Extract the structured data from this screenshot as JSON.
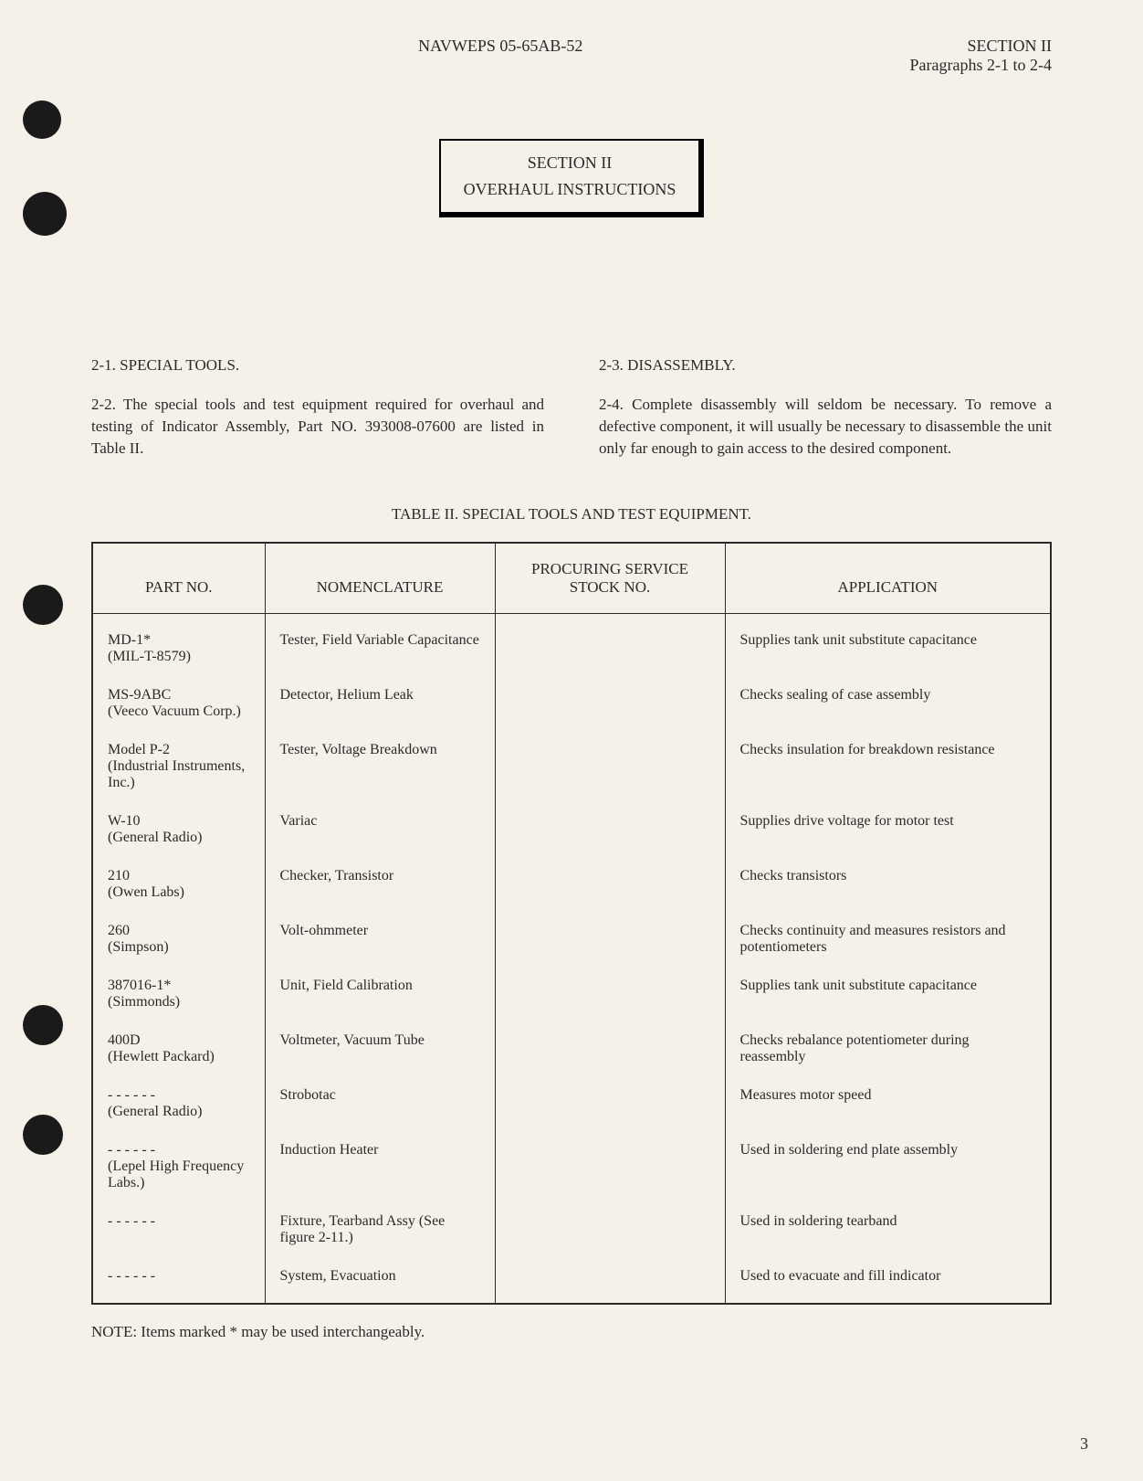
{
  "header": {
    "doc_id": "NAVWEPS 05-65AB-52",
    "section": "SECTION II",
    "paragraphs": "Paragraphs 2-1 to 2-4"
  },
  "section_box": {
    "line1": "SECTION II",
    "line2": "OVERHAUL INSTRUCTIONS"
  },
  "left_col": {
    "heading": "2-1. SPECIAL TOOLS.",
    "para": "2-2. The special tools and test equipment required for overhaul and testing of Indicator Assembly, Part NO. 393008-07600 are listed in Table II."
  },
  "right_col": {
    "heading": "2-3. DISASSEMBLY.",
    "para": "2-4. Complete disassembly will seldom be necessary. To remove a defective component, it will usually be necessary to disassemble the unit only far enough to gain access to the desired component."
  },
  "table": {
    "title": "TABLE II. SPECIAL TOOLS AND TEST EQUIPMENT.",
    "columns": [
      "PART NO.",
      "NOMENCLATURE",
      "PROCURING SERVICE STOCK NO.",
      "APPLICATION"
    ],
    "rows": [
      [
        "MD-1*\n(MIL-T-8579)",
        "Tester, Field Variable Capacitance",
        "",
        "Supplies tank unit substitute capacitance"
      ],
      [
        "MS-9ABC\n(Veeco Vacuum Corp.)",
        "Detector, Helium Leak",
        "",
        "Checks sealing of case assembly"
      ],
      [
        "Model P-2\n(Industrial Instruments, Inc.)",
        "Tester, Voltage Breakdown",
        "",
        "Checks insulation for breakdown resistance"
      ],
      [
        "W-10\n(General Radio)",
        "Variac",
        "",
        "Supplies drive voltage for motor test"
      ],
      [
        "210\n(Owen Labs)",
        "Checker, Transistor",
        "",
        "Checks transistors"
      ],
      [
        "260\n(Simpson)",
        "Volt-ohmmeter",
        "",
        "Checks continuity and measures resistors and potentiometers"
      ],
      [
        "387016-1*\n(Simmonds)",
        "Unit, Field Calibration",
        "",
        "Supplies tank unit substitute capacitance"
      ],
      [
        "400D\n(Hewlett Packard)",
        "Voltmeter, Vacuum Tube",
        "",
        "Checks rebalance potentiometer during reassembly"
      ],
      [
        "- - - - - -\n(General Radio)",
        "Strobotac",
        "",
        "Measures motor speed"
      ],
      [
        "- - - - - -\n(Lepel High Frequency Labs.)",
        "Induction Heater",
        "",
        "Used in soldering end plate assembly"
      ],
      [
        "- - - - - -",
        "Fixture, Tearband Assy (See figure 2-11.)",
        "",
        "Used in soldering tearband"
      ],
      [
        "- - - - - -",
        "System, Evacuation",
        "",
        "Used to evacuate and fill indicator"
      ]
    ]
  },
  "footnote": "NOTE: Items marked * may be used interchangeably.",
  "page_number": "3",
  "colors": {
    "background": "#f5f0e8",
    "text": "#2a2a2a",
    "border": "#2a2a2a"
  }
}
